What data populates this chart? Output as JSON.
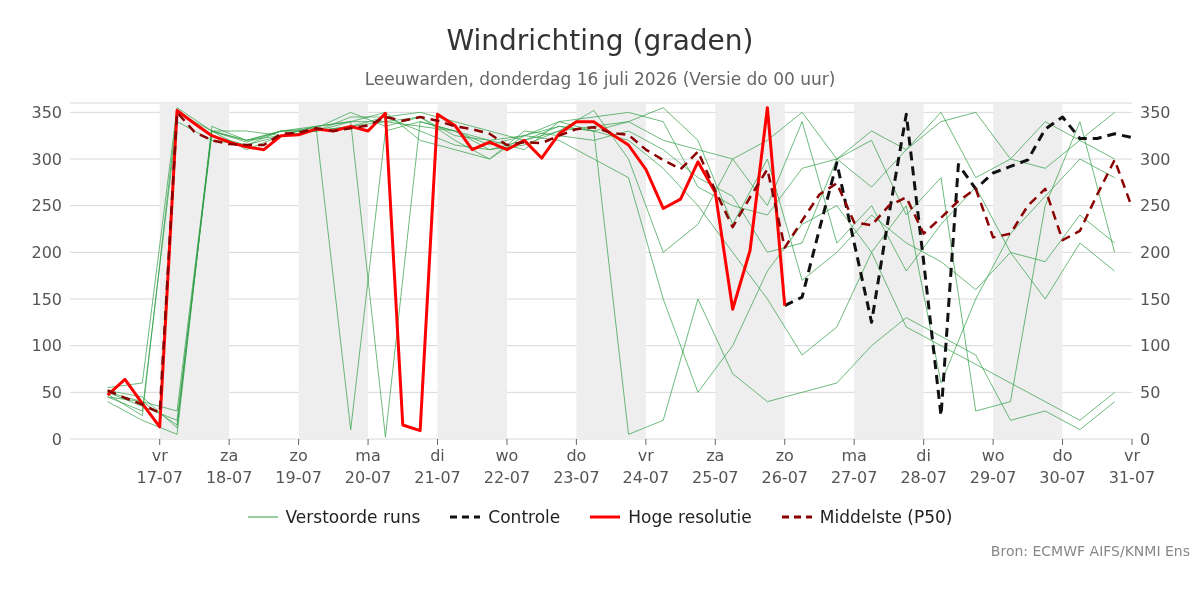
{
  "chart_data": {
    "type": "line",
    "title": "Windrichting (graden)",
    "subtitle": "Leeuwarden, donderdag 16 juli 2026 (Versie do 00 uur)",
    "annotations": [
      "Bron: ECMWF AIFS/KNMI Ens"
    ],
    "x": [
      "2026-07-16T06:00",
      "2026-07-16T12:00",
      "2026-07-16T18:00",
      "2026-07-17T00:00",
      "2026-07-17T06:00",
      "2026-07-17T12:00",
      "2026-07-17T18:00",
      "2026-07-18T00:00",
      "2026-07-18T06:00",
      "2026-07-18T12:00",
      "2026-07-18T18:00",
      "2026-07-19T00:00",
      "2026-07-19T06:00",
      "2026-07-19T12:00",
      "2026-07-19T18:00",
      "2026-07-20T00:00",
      "2026-07-20T06:00",
      "2026-07-20T12:00",
      "2026-07-20T18:00",
      "2026-07-21T00:00",
      "2026-07-21T06:00",
      "2026-07-21T12:00",
      "2026-07-21T18:00",
      "2026-07-22T00:00",
      "2026-07-22T06:00",
      "2026-07-22T12:00",
      "2026-07-22T18:00",
      "2026-07-23T00:00",
      "2026-07-23T06:00",
      "2026-07-23T12:00",
      "2026-07-23T18:00",
      "2026-07-24T00:00",
      "2026-07-24T06:00",
      "2026-07-24T12:00",
      "2026-07-24T18:00",
      "2026-07-25T00:00",
      "2026-07-25T06:00",
      "2026-07-25T12:00",
      "2026-07-25T18:00",
      "2026-07-26T00:00",
      "2026-07-26T06:00",
      "2026-07-26T12:00",
      "2026-07-26T18:00",
      "2026-07-27T00:00",
      "2026-07-27T06:00",
      "2026-07-27T12:00",
      "2026-07-27T18:00",
      "2026-07-28T00:00",
      "2026-07-28T06:00",
      "2026-07-28T12:00",
      "2026-07-28T18:00",
      "2026-07-29T00:00",
      "2026-07-29T06:00",
      "2026-07-29T12:00",
      "2026-07-29T18:00",
      "2026-07-30T00:00",
      "2026-07-30T06:00",
      "2026-07-30T12:00",
      "2026-07-30T18:00",
      "2026-07-31T00:00"
    ],
    "series": [
      {
        "name": "Verstoorde runs",
        "color": "#2e9e44",
        "line_style": "solid",
        "x": [
          "2026-07-16T06:00",
          "2026-07-16T18:00",
          "2026-07-17T06:00",
          "2026-07-17T18:00",
          "2026-07-18T06:00",
          "2026-07-18T18:00",
          "2026-07-19T06:00",
          "2026-07-19T18:00",
          "2026-07-20T06:00",
          "2026-07-20T18:00",
          "2026-07-21T06:00",
          "2026-07-21T18:00",
          "2026-07-22T06:00",
          "2026-07-22T18:00",
          "2026-07-23T06:00",
          "2026-07-23T18:00",
          "2026-07-24T06:00",
          "2026-07-24T18:00",
          "2026-07-25T06:00",
          "2026-07-25T18:00",
          "2026-07-26T06:00",
          "2026-07-26T18:00",
          "2026-07-27T06:00",
          "2026-07-27T18:00",
          "2026-07-28T06:00",
          "2026-07-28T18:00",
          "2026-07-29T06:00",
          "2026-07-29T18:00",
          "2026-07-30T06:00",
          "2026-07-30T18:00"
        ],
        "values": [
          45,
          30,
          340,
          320,
          315,
          330,
          330,
          335,
          340,
          335,
          330,
          320,
          325,
          335,
          330,
          320,
          290,
          250,
          200,
          150,
          90,
          120,
          200,
          250,
          60,
          150,
          220,
          260,
          300,
          280
        ]
      },
      {
        "color": "#2e9e44",
        "line_style": "solid",
        "x": [
          "2026-07-16T06:00",
          "2026-07-16T18:00",
          "2026-07-17T06:00",
          "2026-07-17T18:00",
          "2026-07-18T06:00",
          "2026-07-18T18:00",
          "2026-07-19T06:00",
          "2026-07-19T18:00",
          "2026-07-20T06:00",
          "2026-07-20T18:00",
          "2026-07-21T06:00",
          "2026-07-21T18:00",
          "2026-07-22T06:00",
          "2026-07-22T18:00",
          "2026-07-23T06:00",
          "2026-07-23T18:00",
          "2026-07-24T06:00",
          "2026-07-24T18:00",
          "2026-07-25T06:00",
          "2026-07-25T18:00",
          "2026-07-26T06:00",
          "2026-07-26T18:00",
          "2026-07-27T06:00",
          "2026-07-27T18:00",
          "2026-07-28T06:00",
          "2026-07-28T18:00",
          "2026-07-29T06:00",
          "2026-07-29T18:00",
          "2026-07-30T06:00",
          "2026-07-30T18:00"
        ],
        "values": [
          50,
          40,
          15,
          330,
          320,
          330,
          335,
          10,
          330,
          340,
          330,
          310,
          320,
          330,
          352,
          300,
          200,
          230,
          300,
          250,
          340,
          210,
          250,
          180,
          230,
          270,
          200,
          190,
          240,
          210
        ]
      },
      {
        "color": "#2e9e44",
        "line_style": "solid",
        "x": [
          "2026-07-16T06:00",
          "2026-07-16T18:00",
          "2026-07-17T06:00",
          "2026-07-17T18:00",
          "2026-07-18T06:00",
          "2026-07-18T18:00",
          "2026-07-19T06:00",
          "2026-07-19T18:00",
          "2026-07-20T06:00",
          "2026-07-20T18:00",
          "2026-07-21T06:00",
          "2026-07-21T18:00",
          "2026-07-22T06:00",
          "2026-07-22T18:00",
          "2026-07-23T06:00",
          "2026-07-23T18:00",
          "2026-07-24T06:00",
          "2026-07-24T18:00",
          "2026-07-25T06:00",
          "2026-07-25T18:00",
          "2026-07-26T06:00",
          "2026-07-26T18:00",
          "2026-07-27T06:00",
          "2026-07-27T18:00",
          "2026-07-28T06:00",
          "2026-07-28T18:00",
          "2026-07-29T06:00",
          "2026-07-29T18:00",
          "2026-07-30T06:00",
          "2026-07-30T18:00"
        ],
        "values": [
          55,
          60,
          355,
          330,
          320,
          325,
          330,
          340,
          340,
          345,
          320,
          300,
          330,
          325,
          320,
          330,
          310,
          280,
          260,
          200,
          210,
          300,
          320,
          240,
          280,
          30,
          40,
          250,
          340,
          200
        ]
      },
      {
        "color": "#2e9e44",
        "line_style": "solid",
        "x": [
          "2026-07-16T06:00",
          "2026-07-16T18:00",
          "2026-07-17T06:00",
          "2026-07-17T18:00",
          "2026-07-18T06:00",
          "2026-07-18T18:00",
          "2026-07-19T06:00",
          "2026-07-19T18:00",
          "2026-07-20T06:00",
          "2026-07-20T18:00",
          "2026-07-21T06:00",
          "2026-07-21T18:00",
          "2026-07-22T06:00",
          "2026-07-22T18:00",
          "2026-07-23T06:00",
          "2026-07-23T18:00",
          "2026-07-24T06:00",
          "2026-07-24T18:00",
          "2026-07-25T06:00",
          "2026-07-25T18:00",
          "2026-07-26T06:00",
          "2026-07-26T18:00",
          "2026-07-27T06:00",
          "2026-07-27T18:00",
          "2026-07-28T06:00",
          "2026-07-28T18:00",
          "2026-07-29T06:00",
          "2026-07-29T18:00",
          "2026-07-30T06:00",
          "2026-07-30T18:00"
        ],
        "values": [
          40,
          20,
          5,
          335,
          320,
          330,
          330,
          335,
          345,
          330,
          315,
          310,
          315,
          330,
          335,
          340,
          320,
          310,
          300,
          320,
          350,
          300,
          270,
          310,
          350,
          280,
          300,
          340,
          320,
          300
        ]
      },
      {
        "color": "#2e9e44",
        "line_style": "solid",
        "x": [
          "2026-07-16T06:00",
          "2026-07-16T18:00",
          "2026-07-17T06:00",
          "2026-07-17T18:00",
          "2026-07-18T06:00",
          "2026-07-18T18:00",
          "2026-07-19T06:00",
          "2026-07-19T18:00",
          "2026-07-20T06:00",
          "2026-07-20T18:00",
          "2026-07-21T06:00",
          "2026-07-21T18:00",
          "2026-07-22T06:00",
          "2026-07-22T18:00",
          "2026-07-23T06:00",
          "2026-07-23T18:00",
          "2026-07-24T06:00",
          "2026-07-24T18:00",
          "2026-07-25T06:00",
          "2026-07-25T18:00",
          "2026-07-26T06:00",
          "2026-07-26T18:00",
          "2026-07-27T06:00",
          "2026-07-27T18:00",
          "2026-07-28T06:00",
          "2026-07-28T18:00",
          "2026-07-29T06:00",
          "2026-07-29T18:00",
          "2026-07-30T06:00",
          "2026-07-30T18:00"
        ],
        "values": [
          50,
          35,
          20,
          325,
          315,
          325,
          335,
          340,
          2,
          340,
          330,
          315,
          325,
          320,
          300,
          280,
          150,
          50,
          100,
          180,
          230,
          250,
          200,
          120,
          100,
          80,
          60,
          40,
          20,
          50
        ]
      },
      {
        "color": "#2e9e44",
        "line_style": "solid",
        "x": [
          "2026-07-16T06:00",
          "2026-07-16T18:00",
          "2026-07-17T06:00",
          "2026-07-17T18:00",
          "2026-07-18T06:00",
          "2026-07-18T18:00",
          "2026-07-19T06:00",
          "2026-07-19T18:00",
          "2026-07-20T06:00",
          "2026-07-20T18:00",
          "2026-07-21T06:00",
          "2026-07-21T18:00",
          "2026-07-22T06:00",
          "2026-07-22T18:00",
          "2026-07-23T06:00",
          "2026-07-23T18:00",
          "2026-07-24T06:00",
          "2026-07-24T18:00",
          "2026-07-25T06:00",
          "2026-07-25T18:00",
          "2026-07-26T06:00",
          "2026-07-26T18:00",
          "2026-07-27T06:00",
          "2026-07-27T18:00",
          "2026-07-28T06:00",
          "2026-07-28T18:00",
          "2026-07-29T06:00",
          "2026-07-29T18:00",
          "2026-07-30T06:00",
          "2026-07-30T18:00"
        ],
        "values": [
          45,
          40,
          30,
          330,
          310,
          325,
          330,
          345,
          345,
          350,
          340,
          330,
          320,
          335,
          330,
          340,
          355,
          320,
          230,
          300,
          170,
          200,
          240,
          210,
          190,
          160,
          200,
          150,
          210,
          180
        ]
      },
      {
        "color": "#2e9e44",
        "line_style": "solid",
        "x": [
          "2026-07-16T06:00",
          "2026-07-16T18:00",
          "2026-07-17T06:00",
          "2026-07-17T18:00",
          "2026-07-18T06:00",
          "2026-07-18T18:00",
          "2026-07-19T06:00",
          "2026-07-19T18:00",
          "2026-07-20T06:00",
          "2026-07-20T18:00",
          "2026-07-21T06:00",
          "2026-07-21T18:00",
          "2026-07-22T06:00",
          "2026-07-22T18:00",
          "2026-07-23T06:00",
          "2026-07-23T18:00",
          "2026-07-24T06:00",
          "2026-07-24T18:00",
          "2026-07-25T06:00",
          "2026-07-25T18:00",
          "2026-07-26T06:00",
          "2026-07-26T18:00",
          "2026-07-27T06:00",
          "2026-07-27T18:00",
          "2026-07-28T06:00",
          "2026-07-28T18:00",
          "2026-07-29T06:00",
          "2026-07-29T18:00",
          "2026-07-30T06:00",
          "2026-07-30T18:00"
        ],
        "values": [
          48,
          25,
          350,
          330,
          330,
          325,
          335,
          340,
          350,
          320,
          310,
          300,
          325,
          340,
          330,
          5,
          20,
          150,
          70,
          40,
          50,
          60,
          100,
          130,
          110,
          90,
          20,
          30,
          10,
          40
        ]
      },
      {
        "color": "#2e9e44",
        "line_style": "solid",
        "x": [
          "2026-07-16T06:00",
          "2026-07-16T18:00",
          "2026-07-17T06:00",
          "2026-07-17T18:00",
          "2026-07-18T06:00",
          "2026-07-18T18:00",
          "2026-07-19T06:00",
          "2026-07-19T18:00",
          "2026-07-20T06:00",
          "2026-07-20T18:00",
          "2026-07-21T06:00",
          "2026-07-21T18:00",
          "2026-07-22T06:00",
          "2026-07-22T18:00",
          "2026-07-23T06:00",
          "2026-07-23T18:00",
          "2026-07-24T06:00",
          "2026-07-24T18:00",
          "2026-07-25T06:00",
          "2026-07-25T18:00",
          "2026-07-26T06:00",
          "2026-07-26T18:00",
          "2026-07-27T06:00",
          "2026-07-27T18:00",
          "2026-07-28T06:00",
          "2026-07-28T18:00",
          "2026-07-29T06:00",
          "2026-07-29T18:00",
          "2026-07-30T06:00",
          "2026-07-30T18:00"
        ],
        "values": [
          52,
          45,
          12,
          330,
          318,
          330,
          333,
          350,
          335,
          345,
          325,
          320,
          310,
          340,
          345,
          350,
          340,
          270,
          250,
          240,
          290,
          300,
          330,
          310,
          340,
          350,
          300,
          290,
          320,
          350
        ]
      },
      {
        "name": "Controle",
        "color": "#111111",
        "line_style": "dashed",
        "values": [
          null,
          null,
          null,
          null,
          null,
          null,
          null,
          null,
          null,
          null,
          null,
          null,
          null,
          null,
          null,
          null,
          null,
          null,
          null,
          null,
          null,
          null,
          null,
          null,
          null,
          null,
          null,
          null,
          null,
          null,
          null,
          null,
          null,
          null,
          null,
          null,
          null,
          null,
          null,
          143,
          152,
          225,
          296,
          210,
          125,
          240,
          348,
          190,
          25,
          294,
          268,
          285,
          292,
          299,
          332,
          345,
          322,
          322,
          327,
          323
        ]
      },
      {
        "name": "Hoge resolutie",
        "color": "#ff0000",
        "line_style": "solid",
        "values": [
          47,
          64,
          38,
          13,
          352,
          338,
          325,
          318,
          313,
          310,
          325,
          326,
          332,
          330,
          335,
          330,
          349,
          15,
          9,
          348,
          336,
          310,
          318,
          310,
          320,
          301,
          327,
          340,
          340,
          327,
          315,
          289,
          247,
          257,
          297,
          264,
          139,
          202,
          355,
          143,
          null,
          null,
          null,
          null,
          null,
          null,
          null,
          null,
          null,
          null,
          null,
          null,
          null,
          null,
          null,
          null,
          null,
          null,
          null,
          null
        ]
      },
      {
        "name": "Middelste (P50)",
        "color": "#8b0000",
        "line_style": "dashed",
        "values": [
          52,
          44,
          37,
          28,
          350,
          329,
          320,
          316,
          315,
          315,
          327,
          328,
          333,
          330,
          333,
          336,
          345,
          341,
          345,
          341,
          335,
          332,
          327,
          315,
          318,
          317,
          325,
          332,
          334,
          328,
          326,
          310,
          299,
          289,
          308,
          266,
          227,
          259,
          289,
          205,
          234,
          262,
          274,
          232,
          229,
          250,
          259,
          220,
          237,
          255,
          268,
          216,
          220,
          250,
          268,
          213,
          223,
          262,
          299,
          248
        ]
      }
    ],
    "xlim": [
      "2026-07-15T17:00",
      "2026-07-31T00:00"
    ],
    "xticks": [
      {
        "value": "2026-07-17",
        "label": "vr\n17-07"
      },
      {
        "value": "2026-07-18",
        "label": "za\n18-07"
      },
      {
        "value": "2026-07-19",
        "label": "zo\n19-07"
      },
      {
        "value": "2026-07-20",
        "label": "ma\n20-07"
      },
      {
        "value": "2026-07-21",
        "label": "di\n21-07"
      },
      {
        "value": "2026-07-22",
        "label": "wo\n22-07"
      },
      {
        "value": "2026-07-23",
        "label": "do\n23-07"
      },
      {
        "value": "2026-07-24",
        "label": "vr\n24-07"
      },
      {
        "value": "2026-07-25",
        "label": "za\n25-07"
      },
      {
        "value": "2026-07-26",
        "label": "zo\n26-07"
      },
      {
        "value": "2026-07-27",
        "label": "ma\n27-07"
      },
      {
        "value": "2026-07-28",
        "label": "di\n28-07"
      },
      {
        "value": "2026-07-29",
        "label": "wo\n29-07"
      },
      {
        "value": "2026-07-30",
        "label": "do\n30-07"
      },
      {
        "value": "2026-07-31",
        "label": "vr\n31-07"
      }
    ],
    "ylim": [
      0,
      360
    ],
    "yticks": [
      0,
      50,
      100,
      150,
      200,
      250,
      300,
      350
    ],
    "y2lim": [
      0,
      360
    ],
    "y2ticks": [
      0,
      50,
      100,
      150,
      200,
      250,
      300,
      350
    ],
    "bands": [
      {
        "axis": "x",
        "from": "2026-07-17",
        "to": "2026-07-18",
        "color": "#eeeeee"
      },
      {
        "axis": "x",
        "from": "2026-07-19",
        "to": "2026-07-20",
        "color": "#eeeeee"
      },
      {
        "axis": "x",
        "from": "2026-07-21",
        "to": "2026-07-22",
        "color": "#eeeeee"
      },
      {
        "axis": "x",
        "from": "2026-07-23",
        "to": "2026-07-24",
        "color": "#eeeeee"
      },
      {
        "axis": "x",
        "from": "2026-07-25",
        "to": "2026-07-26",
        "color": "#eeeeee"
      },
      {
        "axis": "x",
        "from": "2026-07-27",
        "to": "2026-07-28",
        "color": "#eeeeee"
      },
      {
        "axis": "x",
        "from": "2026-07-29",
        "to": "2026-07-30",
        "color": "#eeeeee"
      }
    ],
    "grid": "y",
    "legend": "bottom",
    "marker": "none"
  }
}
